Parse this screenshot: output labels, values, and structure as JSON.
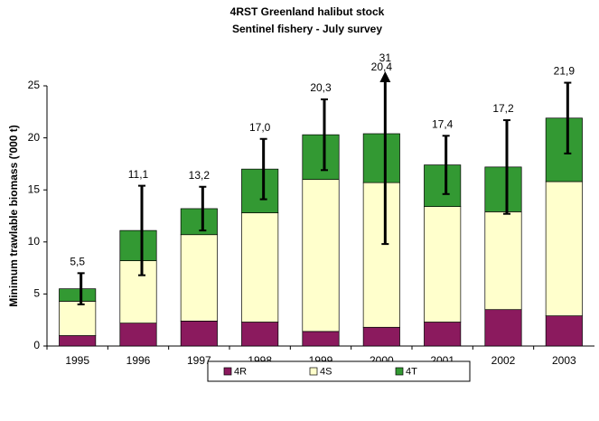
{
  "chart_data": {
    "type": "stacked_bar",
    "title": "4RST Greenland halibut stock",
    "subtitle": "Sentinel fishery - July survey",
    "y_label": "Minimum trawlable biomass ('000 t)",
    "categories": [
      "1995",
      "1996",
      "1997",
      "1998",
      "1999",
      "2000",
      "2001",
      "2002",
      "2003"
    ],
    "series": [
      {
        "name": "4R",
        "color": "#8b1a5e",
        "values": [
          1.0,
          2.2,
          2.4,
          2.3,
          1.4,
          1.8,
          2.3,
          3.5,
          2.9
        ]
      },
      {
        "name": "4S",
        "color": "#ffffcc",
        "values": [
          3.3,
          6.0,
          8.3,
          10.5,
          14.6,
          13.9,
          11.1,
          9.4,
          12.9
        ]
      },
      {
        "name": "4T",
        "color": "#339933",
        "values": [
          1.2,
          2.9,
          2.5,
          4.2,
          4.3,
          4.7,
          4.0,
          4.3,
          6.1
        ]
      }
    ],
    "totals": {
      "values": [
        5.5,
        11.1,
        13.2,
        17.0,
        20.3,
        20.4,
        17.4,
        17.2,
        21.9
      ],
      "value_labels": [
        "5,5",
        "11,1",
        "13,2",
        "17,0",
        "20,3",
        "20,4",
        "17,4",
        "17,2",
        "21,9"
      ],
      "errors": [
        1.5,
        4.3,
        2.1,
        2.9,
        3.4,
        10.6,
        2.8,
        4.5,
        3.4
      ]
    },
    "annotations": [
      {
        "x": "2000",
        "value": 31
      }
    ],
    "ylim": [
      0,
      25
    ],
    "yticks": [
      0,
      5,
      10,
      15,
      20,
      25
    ],
    "legend": "bottom"
  }
}
